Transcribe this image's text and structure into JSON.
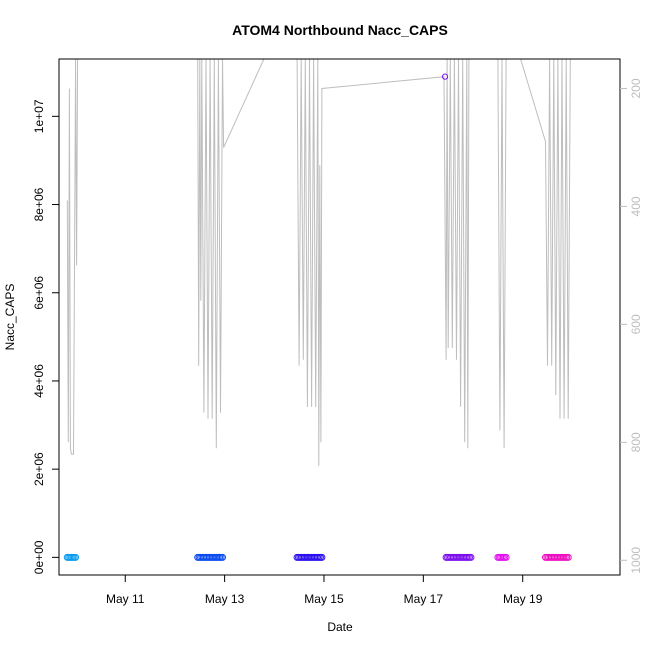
{
  "chart_data": {
    "type": "scatter",
    "title": "ATOM4 Northbound Nacc_CAPS",
    "xlabel": "Date",
    "ylabel": "Nacc_CAPS",
    "x_ticks": [
      "May 11",
      "May 13",
      "May 15",
      "May 17",
      "May 19"
    ],
    "x_tick_dates": [
      "2022-05-11",
      "2022-05-13",
      "2022-05-15",
      "2022-05-17",
      "2022-05-19"
    ],
    "xlim": [
      "2022-05-09T16:00",
      "2022-05-20T23:00"
    ],
    "y_ticks": [
      0,
      2000000,
      4000000,
      6000000,
      8000000,
      10000000
    ],
    "y_tick_labels": [
      "0e+00",
      "2e+06",
      "4e+06",
      "6e+06",
      "8e+06",
      "1e+07"
    ],
    "ylim": [
      -400000,
      11300000
    ],
    "y2_ticks": [
      200,
      400,
      600,
      800,
      1000
    ],
    "y2_tick_labels": [
      "200",
      "400",
      "600",
      "800",
      "1000"
    ],
    "y2_reversed": true,
    "y2_lim": [
      1025,
      150
    ],
    "grid": false,
    "legend": "none",
    "colors": {
      "grey_line": "#bebebe",
      "axis": "#000000",
      "right_axis": "#bebebe"
    },
    "point_series": [
      {
        "color": "#0a9bef",
        "x_start": "2022-05-09T20:00",
        "x_end": "2022-05-10T00:00",
        "y": 0
      },
      {
        "color": "#0a4bef",
        "x_start": "2022-05-12T11:00",
        "x_end": "2022-05-12T23:00",
        "y": 0
      },
      {
        "color": "#2a10ee",
        "x_start": "2022-05-14T11:00",
        "x_end": "2022-05-14T23:00",
        "y": 0
      },
      {
        "color": "#7c10ee",
        "x_start": "2022-05-17T11:00",
        "x_end": "2022-05-17T23:00",
        "y": 0
      },
      {
        "color": "#e210ee",
        "x_start": "2022-05-18T12:00",
        "x_end": "2022-05-18T16:00",
        "y": 0
      },
      {
        "color": "#ee10c0",
        "x_start": "2022-05-19T11:00",
        "x_end": "2022-05-19T22:00",
        "y": 0
      }
    ],
    "outlier_points": [
      {
        "color": "#7c10ee",
        "x": "2022-05-17T10:30",
        "y": 10900000
      }
    ],
    "grey_line_y2": [
      [
        "2022-05-09T20:00",
        390
      ],
      [
        "2022-05-09T20:30",
        800
      ],
      [
        "2022-05-09T21:00",
        200
      ],
      [
        "2022-05-09T21:30",
        810
      ],
      [
        "2022-05-09T22:00",
        820
      ],
      [
        "2022-05-09T23:00",
        820
      ],
      [
        "2022-05-10T00:00",
        150
      ],
      [
        "2022-05-10T00:30",
        500
      ],
      [
        "2022-05-10T01:00",
        150
      ],
      [
        "2022-05-12T11:00",
        150
      ],
      [
        "2022-05-12T11:30",
        670
      ],
      [
        "2022-05-12T12:00",
        150
      ],
      [
        "2022-05-12T12:30",
        560
      ],
      [
        "2022-05-12T13:00",
        150
      ],
      [
        "2022-05-12T14:00",
        750
      ],
      [
        "2022-05-12T15:00",
        150
      ],
      [
        "2022-05-12T16:00",
        760
      ],
      [
        "2022-05-12T17:00",
        150
      ],
      [
        "2022-05-12T18:00",
        760
      ],
      [
        "2022-05-12T19:00",
        150
      ],
      [
        "2022-05-12T20:00",
        810
      ],
      [
        "2022-05-12T21:00",
        150
      ],
      [
        "2022-05-12T22:00",
        750
      ],
      [
        "2022-05-12T23:00",
        150
      ],
      [
        "2022-05-12T23:30",
        300
      ],
      [
        "2022-05-13T19:00",
        150
      ],
      [
        "2022-05-14T11:00",
        150
      ],
      [
        "2022-05-14T12:00",
        670
      ],
      [
        "2022-05-14T13:00",
        150
      ],
      [
        "2022-05-14T14:00",
        660
      ],
      [
        "2022-05-14T15:00",
        150
      ],
      [
        "2022-05-14T16:00",
        740
      ],
      [
        "2022-05-14T17:00",
        150
      ],
      [
        "2022-05-14T18:00",
        740
      ],
      [
        "2022-05-14T19:00",
        150
      ],
      [
        "2022-05-14T20:00",
        740
      ],
      [
        "2022-05-14T21:00",
        150
      ],
      [
        "2022-05-14T21:30",
        840
      ],
      [
        "2022-05-14T22:00",
        330
      ],
      [
        "2022-05-14T22:30",
        800
      ],
      [
        "2022-05-14T23:00",
        200
      ],
      [
        "2022-05-17T10:00",
        180
      ],
      [
        "2022-05-17T11:00",
        660
      ],
      [
        "2022-05-17T11:30",
        150
      ],
      [
        "2022-05-17T12:00",
        640
      ],
      [
        "2022-05-17T13:00",
        150
      ],
      [
        "2022-05-17T14:00",
        640
      ],
      [
        "2022-05-17T15:00",
        150
      ],
      [
        "2022-05-17T16:00",
        660
      ],
      [
        "2022-05-17T17:00",
        150
      ],
      [
        "2022-05-17T18:00",
        740
      ],
      [
        "2022-05-17T19:00",
        150
      ],
      [
        "2022-05-17T20:00",
        800
      ],
      [
        "2022-05-17T21:00",
        150
      ],
      [
        "2022-05-17T21:30",
        810
      ],
      [
        "2022-05-17T22:00",
        150
      ],
      [
        "2022-05-18T12:00",
        150
      ],
      [
        "2022-05-18T13:00",
        780
      ],
      [
        "2022-05-18T14:00",
        150
      ],
      [
        "2022-05-18T15:00",
        810
      ],
      [
        "2022-05-18T16:00",
        150
      ],
      [
        "2022-05-18T23:00",
        150
      ],
      [
        "2022-05-19T11:00",
        290
      ],
      [
        "2022-05-19T12:00",
        670
      ],
      [
        "2022-05-19T13:00",
        150
      ],
      [
        "2022-05-19T14:00",
        670
      ],
      [
        "2022-05-19T15:00",
        150
      ],
      [
        "2022-05-19T16:00",
        720
      ],
      [
        "2022-05-19T17:00",
        150
      ],
      [
        "2022-05-19T18:00",
        760
      ],
      [
        "2022-05-19T19:00",
        150
      ],
      [
        "2022-05-19T20:00",
        760
      ],
      [
        "2022-05-19T21:00",
        150
      ],
      [
        "2022-05-19T22:00",
        760
      ],
      [
        "2022-05-19T23:00",
        150
      ]
    ]
  }
}
